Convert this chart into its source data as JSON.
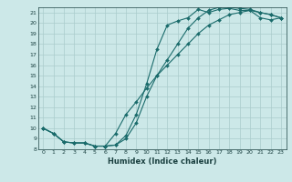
{
  "xlabel": "Humidex (Indice chaleur)",
  "bg_color": "#cce8e8",
  "grid_color": "#aacccc",
  "line_color": "#1a6b6b",
  "xlim": [
    -0.5,
    23.5
  ],
  "ylim": [
    8,
    21.5
  ],
  "xticks": [
    0,
    1,
    2,
    3,
    4,
    5,
    6,
    7,
    8,
    9,
    10,
    11,
    12,
    13,
    14,
    15,
    16,
    17,
    18,
    19,
    20,
    21,
    22,
    23
  ],
  "yticks": [
    8,
    9,
    10,
    11,
    12,
    13,
    14,
    15,
    16,
    17,
    18,
    19,
    20,
    21
  ],
  "curve1_x": [
    0,
    1,
    2,
    3,
    4,
    5,
    6,
    7,
    8,
    9,
    10,
    11,
    12,
    13,
    14,
    15,
    16,
    17,
    18,
    19,
    20,
    21,
    22,
    23
  ],
  "curve1_y": [
    10.0,
    9.5,
    8.7,
    8.6,
    8.6,
    8.3,
    8.3,
    8.4,
    9.3,
    11.3,
    14.2,
    17.5,
    19.8,
    20.2,
    20.5,
    21.3,
    21.0,
    21.3,
    21.4,
    21.2,
    21.2,
    21.0,
    20.8,
    20.5
  ],
  "curve2_x": [
    0,
    1,
    2,
    3,
    4,
    5,
    6,
    7,
    8,
    9,
    10,
    11,
    12,
    13,
    14,
    15,
    16,
    17,
    18,
    19,
    20,
    21,
    22,
    23
  ],
  "curve2_y": [
    10.0,
    9.5,
    8.7,
    8.6,
    8.6,
    8.3,
    8.3,
    8.4,
    9.0,
    10.5,
    13.0,
    15.0,
    16.5,
    18.0,
    19.5,
    20.5,
    21.2,
    21.5,
    21.5,
    21.4,
    21.3,
    21.0,
    20.8,
    20.5
  ],
  "curve3_x": [
    0,
    1,
    2,
    3,
    4,
    5,
    6,
    7,
    8,
    9,
    10,
    11,
    12,
    13,
    14,
    15,
    16,
    17,
    18,
    19,
    20,
    21,
    22,
    23
  ],
  "curve3_y": [
    10.0,
    9.5,
    8.7,
    8.6,
    8.6,
    8.3,
    8.3,
    9.5,
    11.3,
    12.5,
    13.8,
    15.0,
    16.0,
    17.0,
    18.0,
    19.0,
    19.8,
    20.3,
    20.8,
    21.0,
    21.2,
    20.5,
    20.3,
    20.5
  ]
}
